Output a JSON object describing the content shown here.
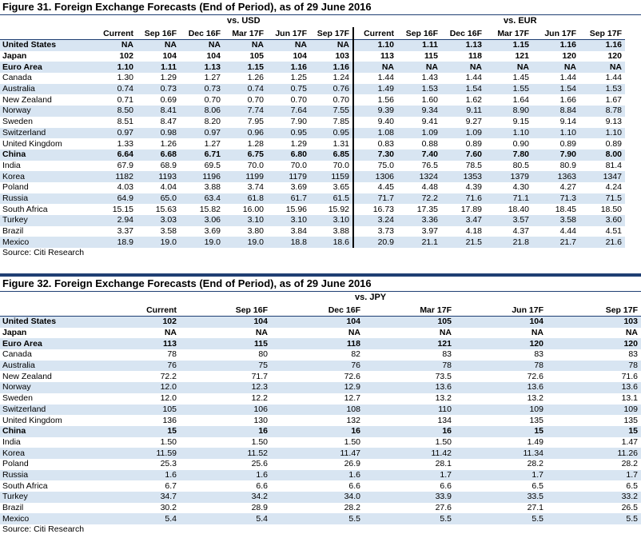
{
  "fig31": {
    "title": "Figure 31. Foreign Exchange Forecasts (End of Period), as of 29 June 2016",
    "group_usd": "vs. USD",
    "group_eur": "vs. EUR",
    "columns": [
      "Current",
      "Sep 16F",
      "Dec 16F",
      "Mar 17F",
      "Jun 17F",
      "Sep 17F"
    ],
    "rows": [
      {
        "name": "United States",
        "usd": [
          "NA",
          "NA",
          "NA",
          "NA",
          "NA",
          "NA"
        ],
        "eur": [
          "1.10",
          "1.11",
          "1.13",
          "1.15",
          "1.16",
          "1.16"
        ],
        "bold": true
      },
      {
        "name": "Japan",
        "usd": [
          "102",
          "104",
          "104",
          "105",
          "104",
          "103"
        ],
        "eur": [
          "113",
          "115",
          "118",
          "121",
          "120",
          "120"
        ],
        "bold": true
      },
      {
        "name": "Euro Area",
        "usd": [
          "1.10",
          "1.11",
          "1.13",
          "1.15",
          "1.16",
          "1.16"
        ],
        "eur": [
          "NA",
          "NA",
          "NA",
          "NA",
          "NA",
          "NA"
        ],
        "bold": true
      },
      {
        "name": "Canada",
        "usd": [
          "1.30",
          "1.29",
          "1.27",
          "1.26",
          "1.25",
          "1.24"
        ],
        "eur": [
          "1.44",
          "1.43",
          "1.44",
          "1.45",
          "1.44",
          "1.44"
        ]
      },
      {
        "name": "Australia",
        "usd": [
          "0.74",
          "0.73",
          "0.73",
          "0.74",
          "0.75",
          "0.76"
        ],
        "eur": [
          "1.49",
          "1.53",
          "1.54",
          "1.55",
          "1.54",
          "1.53"
        ]
      },
      {
        "name": "New Zealand",
        "usd": [
          "0.71",
          "0.69",
          "0.70",
          "0.70",
          "0.70",
          "0.70"
        ],
        "eur": [
          "1.56",
          "1.60",
          "1.62",
          "1.64",
          "1.66",
          "1.67"
        ]
      },
      {
        "name": "Norway",
        "usd": [
          "8.50",
          "8.41",
          "8.06",
          "7.74",
          "7.64",
          "7.55"
        ],
        "eur": [
          "9.39",
          "9.34",
          "9.11",
          "8.90",
          "8.84",
          "8.78"
        ]
      },
      {
        "name": "Sweden",
        "usd": [
          "8.51",
          "8.47",
          "8.20",
          "7.95",
          "7.90",
          "7.85"
        ],
        "eur": [
          "9.40",
          "9.41",
          "9.27",
          "9.15",
          "9.14",
          "9.13"
        ]
      },
      {
        "name": "Switzerland",
        "usd": [
          "0.97",
          "0.98",
          "0.97",
          "0.96",
          "0.95",
          "0.95"
        ],
        "eur": [
          "1.08",
          "1.09",
          "1.09",
          "1.10",
          "1.10",
          "1.10"
        ]
      },
      {
        "name": "United Kingdom",
        "usd": [
          "1.33",
          "1.26",
          "1.27",
          "1.28",
          "1.29",
          "1.31"
        ],
        "eur": [
          "0.83",
          "0.88",
          "0.89",
          "0.90",
          "0.89",
          "0.89"
        ]
      },
      {
        "name": "China",
        "usd": [
          "6.64",
          "6.68",
          "6.71",
          "6.75",
          "6.80",
          "6.85"
        ],
        "eur": [
          "7.30",
          "7.40",
          "7.60",
          "7.80",
          "7.90",
          "8.00"
        ],
        "bold": true
      },
      {
        "name": "India",
        "usd": [
          "67.9",
          "68.9",
          "69.5",
          "70.0",
          "70.0",
          "70.0"
        ],
        "eur": [
          "75.0",
          "76.5",
          "78.5",
          "80.5",
          "80.9",
          "81.4"
        ]
      },
      {
        "name": "Korea",
        "usd": [
          "1182",
          "1193",
          "1196",
          "1199",
          "1179",
          "1159"
        ],
        "eur": [
          "1306",
          "1324",
          "1353",
          "1379",
          "1363",
          "1347"
        ]
      },
      {
        "name": "Poland",
        "usd": [
          "4.03",
          "4.04",
          "3.88",
          "3.74",
          "3.69",
          "3.65"
        ],
        "eur": [
          "4.45",
          "4.48",
          "4.39",
          "4.30",
          "4.27",
          "4.24"
        ]
      },
      {
        "name": "Russia",
        "usd": [
          "64.9",
          "65.0",
          "63.4",
          "61.8",
          "61.7",
          "61.5"
        ],
        "eur": [
          "71.7",
          "72.2",
          "71.6",
          "71.1",
          "71.3",
          "71.5"
        ]
      },
      {
        "name": "South Africa",
        "usd": [
          "15.15",
          "15.63",
          "15.82",
          "16.00",
          "15.96",
          "15.92"
        ],
        "eur": [
          "16.73",
          "17.35",
          "17.89",
          "18.40",
          "18.45",
          "18.50"
        ]
      },
      {
        "name": "Turkey",
        "usd": [
          "2.94",
          "3.03",
          "3.06",
          "3.10",
          "3.10",
          "3.10"
        ],
        "eur": [
          "3.24",
          "3.36",
          "3.47",
          "3.57",
          "3.58",
          "3.60"
        ]
      },
      {
        "name": "Brazil",
        "usd": [
          "3.37",
          "3.58",
          "3.69",
          "3.80",
          "3.84",
          "3.88"
        ],
        "eur": [
          "3.73",
          "3.97",
          "4.18",
          "4.37",
          "4.44",
          "4.51"
        ]
      },
      {
        "name": "Mexico",
        "usd": [
          "18.9",
          "19.0",
          "19.0",
          "19.0",
          "18.8",
          "18.6"
        ],
        "eur": [
          "20.9",
          "21.1",
          "21.5",
          "21.8",
          "21.7",
          "21.6"
        ]
      }
    ],
    "source": "Source: Citi Research"
  },
  "fig32": {
    "title": "Figure 32. Foreign Exchange Forecasts (End of Period), as of 29 June 2016",
    "group_jpy": "vs. JPY",
    "columns": [
      "Current",
      "Sep 16F",
      "Dec 16F",
      "Mar 17F",
      "Jun 17F",
      "Sep 17F"
    ],
    "rows": [
      {
        "name": "United States",
        "v": [
          "102",
          "104",
          "104",
          "105",
          "104",
          "103"
        ],
        "bold": true
      },
      {
        "name": "Japan",
        "v": [
          "NA",
          "NA",
          "NA",
          "NA",
          "NA",
          "NA"
        ],
        "bold": true
      },
      {
        "name": "Euro Area",
        "v": [
          "113",
          "115",
          "118",
          "121",
          "120",
          "120"
        ],
        "bold": true
      },
      {
        "name": "Canada",
        "v": [
          "78",
          "80",
          "82",
          "83",
          "83",
          "83"
        ]
      },
      {
        "name": "Australia",
        "v": [
          "76",
          "75",
          "76",
          "78",
          "78",
          "78"
        ]
      },
      {
        "name": "New Zealand",
        "v": [
          "72.2",
          "71.7",
          "72.6",
          "73.5",
          "72.6",
          "71.6"
        ]
      },
      {
        "name": "Norway",
        "v": [
          "12.0",
          "12.3",
          "12.9",
          "13.6",
          "13.6",
          "13.6"
        ]
      },
      {
        "name": "Sweden",
        "v": [
          "12.0",
          "12.2",
          "12.7",
          "13.2",
          "13.2",
          "13.1"
        ]
      },
      {
        "name": "Switzerland",
        "v": [
          "105",
          "106",
          "108",
          "110",
          "109",
          "109"
        ]
      },
      {
        "name": "United Kingdom",
        "v": [
          "136",
          "130",
          "132",
          "134",
          "135",
          "135"
        ]
      },
      {
        "name": "China",
        "v": [
          "15",
          "16",
          "16",
          "16",
          "15",
          "15"
        ],
        "bold": true
      },
      {
        "name": "India",
        "v": [
          "1.50",
          "1.50",
          "1.50",
          "1.50",
          "1.49",
          "1.47"
        ]
      },
      {
        "name": "Korea",
        "v": [
          "11.59",
          "11.52",
          "11.47",
          "11.42",
          "11.34",
          "11.26"
        ]
      },
      {
        "name": "Poland",
        "v": [
          "25.3",
          "25.6",
          "26.9",
          "28.1",
          "28.2",
          "28.2"
        ]
      },
      {
        "name": "Russia",
        "v": [
          "1.6",
          "1.6",
          "1.6",
          "1.7",
          "1.7",
          "1.7"
        ]
      },
      {
        "name": "South Africa",
        "v": [
          "6.7",
          "6.6",
          "6.6",
          "6.6",
          "6.5",
          "6.5"
        ]
      },
      {
        "name": "Turkey",
        "v": [
          "34.7",
          "34.2",
          "34.0",
          "33.9",
          "33.5",
          "33.2"
        ]
      },
      {
        "name": "Brazil",
        "v": [
          "30.2",
          "28.9",
          "28.2",
          "27.6",
          "27.1",
          "26.5"
        ]
      },
      {
        "name": "Mexico",
        "v": [
          "5.4",
          "5.4",
          "5.5",
          "5.5",
          "5.5",
          "5.5"
        ]
      }
    ],
    "source": "Source: Citi Research"
  },
  "colors": {
    "shade": "#d8e5f2",
    "rule": "#1f3f73"
  }
}
